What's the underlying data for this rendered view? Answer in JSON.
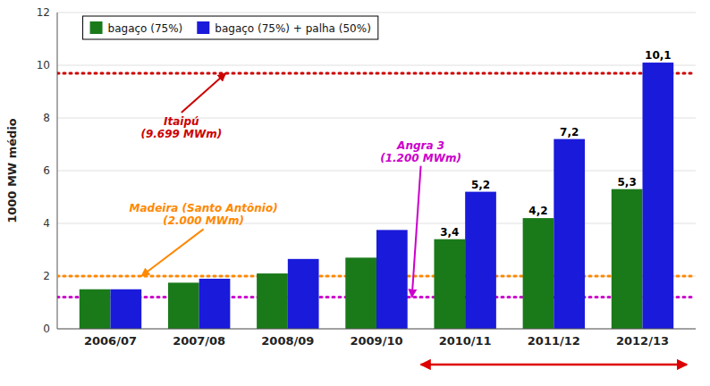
{
  "chart_data": {
    "type": "bar",
    "categories": [
      "2006/07",
      "2007/08",
      "2008/09",
      "2009/10",
      "2010/11",
      "2011/12",
      "2012/13"
    ],
    "series": [
      {
        "name": "bagaço (75%)",
        "color": "#1a7a1a",
        "values": [
          1.5,
          1.75,
          2.1,
          2.7,
          3.4,
          4.2,
          5.3
        ],
        "value_labels": [
          null,
          null,
          null,
          null,
          "3,4",
          "4,2",
          "5,3"
        ]
      },
      {
        "name": "bagaço (75%) + palha (50%)",
        "color": "#1a1adb",
        "values": [
          1.5,
          1.9,
          2.65,
          3.75,
          5.2,
          7.2,
          10.1
        ],
        "value_labels": [
          null,
          null,
          null,
          null,
          "5,2",
          "7,2",
          "10,1"
        ]
      }
    ],
    "ylim": [
      0,
      12
    ],
    "yticks": [
      0,
      2,
      4,
      6,
      8,
      10,
      12
    ],
    "ylabel": "1000 MW médio",
    "grid": true,
    "legend": "upper left",
    "data_labels": true,
    "reference_lines": [
      {
        "value": 9.699,
        "color": "#cc0000",
        "label": "Itaipú\n(9.699 MWm)"
      },
      {
        "value": 2.0,
        "color": "#ff8800",
        "label": "Madeira (Santo Antônio)\n(2.000 MWm)"
      },
      {
        "value": 1.2,
        "color": "#cc00cc",
        "label": "Angra 3\n(1.200 MWm)"
      }
    ],
    "highlight": {
      "from": "2010/11",
      "to": "2012/13",
      "color": "#dd0000"
    }
  }
}
